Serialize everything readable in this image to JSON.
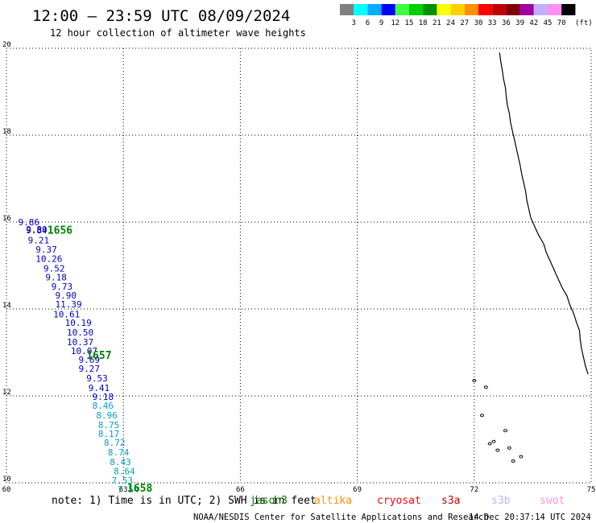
{
  "header": {
    "title": "12:00 – 23:59 UTC 08/09/2024",
    "subtitle": "12 hour collection of altimeter wave heights"
  },
  "legend": {
    "unit": "(ft)",
    "bins": [
      {
        "color": "#808080",
        "label": "3"
      },
      {
        "color": "#00ffff",
        "label": "6"
      },
      {
        "color": "#00b0ff",
        "label": "9"
      },
      {
        "color": "#0000ff",
        "label": "12"
      },
      {
        "color": "#40ff40",
        "label": "15"
      },
      {
        "color": "#00d000",
        "label": "18"
      },
      {
        "color": "#009000",
        "label": "21"
      },
      {
        "color": "#ffff00",
        "label": "24"
      },
      {
        "color": "#ffd000",
        "label": "27"
      },
      {
        "color": "#ff9000",
        "label": "30"
      },
      {
        "color": "#ff0000",
        "label": "33"
      },
      {
        "color": "#c00000",
        "label": "36"
      },
      {
        "color": "#800000",
        "label": "39"
      },
      {
        "color": "#a000a0",
        "label": "42"
      },
      {
        "color": "#c0b0ff",
        "label": "45"
      },
      {
        "color": "#ff90f0",
        "label": "70"
      },
      {
        "color": "#000000",
        "label": ""
      }
    ]
  },
  "map": {
    "lon_range": [
      60,
      75
    ],
    "lat_range": [
      10,
      20
    ],
    "x_ticks": [
      "60",
      "63",
      "66",
      "69",
      "72",
      "75"
    ],
    "y_ticks": [
      "10",
      "12",
      "14",
      "16",
      "18",
      "20"
    ],
    "grid": true,
    "track_color": "#0000c0",
    "track_color_low": "#00a0d0",
    "time_color": "#008000",
    "observations": [
      {
        "lon": 60.3,
        "lat": 15.93,
        "swh": "9.86"
      },
      {
        "lon": 60.5,
        "lat": 15.76,
        "swh": "9.89"
      },
      {
        "lon": 60.5,
        "lat": 15.74,
        "swh": "9.84"
      },
      {
        "lon": 60.55,
        "lat": 15.51,
        "swh": "9.21"
      },
      {
        "lon": 60.75,
        "lat": 15.3,
        "swh": "9.37"
      },
      {
        "lon": 60.75,
        "lat": 15.08,
        "swh": "10.26"
      },
      {
        "lon": 60.95,
        "lat": 14.86,
        "swh": "9.52"
      },
      {
        "lon": 61.0,
        "lat": 14.66,
        "swh": "9.18"
      },
      {
        "lon": 61.15,
        "lat": 14.44,
        "swh": "9.73"
      },
      {
        "lon": 61.25,
        "lat": 14.24,
        "swh": "9.90"
      },
      {
        "lon": 61.25,
        "lat": 14.04,
        "swh": "11.39"
      },
      {
        "lon": 61.2,
        "lat": 13.81,
        "swh": "10.61"
      },
      {
        "lon": 61.5,
        "lat": 13.61,
        "swh": "10.19"
      },
      {
        "lon": 61.55,
        "lat": 13.39,
        "swh": "10.50"
      },
      {
        "lon": 61.55,
        "lat": 13.17,
        "swh": "10.37"
      },
      {
        "lon": 61.65,
        "lat": 12.96,
        "swh": "10.07"
      },
      {
        "lon": 61.85,
        "lat": 12.76,
        "swh": "9.69"
      },
      {
        "lon": 61.85,
        "lat": 12.56,
        "swh": "9.27"
      },
      {
        "lon": 62.05,
        "lat": 12.33,
        "swh": "9.53"
      },
      {
        "lon": 62.1,
        "lat": 12.11,
        "swh": "9.41"
      },
      {
        "lon": 62.2,
        "lat": 11.91,
        "swh": "9.18"
      },
      {
        "lon": 62.2,
        "lat": 11.7,
        "swh": "8.46"
      },
      {
        "lon": 62.3,
        "lat": 11.48,
        "swh": "8.96"
      },
      {
        "lon": 62.35,
        "lat": 11.26,
        "swh": "8.75"
      },
      {
        "lon": 62.35,
        "lat": 11.06,
        "swh": "8.17"
      },
      {
        "lon": 62.5,
        "lat": 10.85,
        "swh": "8.72"
      },
      {
        "lon": 62.6,
        "lat": 10.63,
        "swh": "8.74"
      },
      {
        "lon": 62.65,
        "lat": 10.41,
        "swh": "8.43"
      },
      {
        "lon": 62.75,
        "lat": 10.19,
        "swh": "8.64"
      },
      {
        "lon": 62.7,
        "lat": 9.98,
        "swh": "7.53"
      },
      {
        "lon": 62.85,
        "lat": 9.78,
        "swh": "7.54"
      }
    ],
    "time_labels": [
      {
        "lon": 61.05,
        "lat": 15.73,
        "text": "1656"
      },
      {
        "lon": 62.05,
        "lat": 12.85,
        "text": "1657"
      },
      {
        "lon": 63.1,
        "lat": 9.8,
        "text": "1658"
      }
    ],
    "coastline": [
      [
        72.65,
        19.9
      ],
      [
        72.68,
        19.7
      ],
      [
        72.72,
        19.5
      ],
      [
        72.75,
        19.3
      ],
      [
        72.8,
        19.1
      ],
      [
        72.82,
        18.9
      ],
      [
        72.85,
        18.7
      ],
      [
        72.9,
        18.5
      ],
      [
        72.93,
        18.3
      ],
      [
        72.98,
        18.1
      ],
      [
        73.03,
        17.9
      ],
      [
        73.08,
        17.7
      ],
      [
        73.13,
        17.5
      ],
      [
        73.18,
        17.3
      ],
      [
        73.22,
        17.1
      ],
      [
        73.27,
        16.9
      ],
      [
        73.32,
        16.7
      ],
      [
        73.35,
        16.5
      ],
      [
        73.4,
        16.3
      ],
      [
        73.45,
        16.1
      ],
      [
        73.55,
        15.9
      ],
      [
        73.65,
        15.7
      ],
      [
        73.78,
        15.5
      ],
      [
        73.85,
        15.3
      ],
      [
        73.95,
        15.1
      ],
      [
        74.05,
        14.9
      ],
      [
        74.15,
        14.7
      ],
      [
        74.25,
        14.5
      ],
      [
        74.38,
        14.3
      ],
      [
        74.45,
        14.1
      ],
      [
        74.55,
        13.9
      ],
      [
        74.62,
        13.7
      ],
      [
        74.7,
        13.5
      ],
      [
        74.72,
        13.3
      ],
      [
        74.75,
        13.1
      ],
      [
        74.8,
        12.9
      ],
      [
        74.85,
        12.7
      ],
      [
        74.92,
        12.5
      ]
    ],
    "islands": [
      [
        72.2,
        11.55
      ],
      [
        72.4,
        10.9
      ],
      [
        72.5,
        10.95
      ],
      [
        72.6,
        10.75
      ],
      [
        72.8,
        11.2
      ],
      [
        73.0,
        10.5
      ],
      [
        73.2,
        10.6
      ],
      [
        72.0,
        12.35
      ],
      [
        72.3,
        12.2
      ],
      [
        72.9,
        10.8
      ]
    ]
  },
  "footer": {
    "note_prefix": "note: 1) Time is in UTC; 2) SWH is in feet",
    "missions": [
      {
        "name": "jason3",
        "color": "#008000"
      },
      {
        "name": "altika",
        "color": "#ff9000"
      },
      {
        "name": "cryosat",
        "color": "#ff0000"
      },
      {
        "name": "s3a",
        "color": "#c00000"
      },
      {
        "name": "s3b",
        "color": "#c0b0ff"
      },
      {
        "name": "swot",
        "color": "#ff90f0"
      }
    ],
    "credit": "NOAA/NESDIS Center for Satellite Applications and Research",
    "timestamp": "14 Dec 20:37:14 UTC 2024"
  }
}
